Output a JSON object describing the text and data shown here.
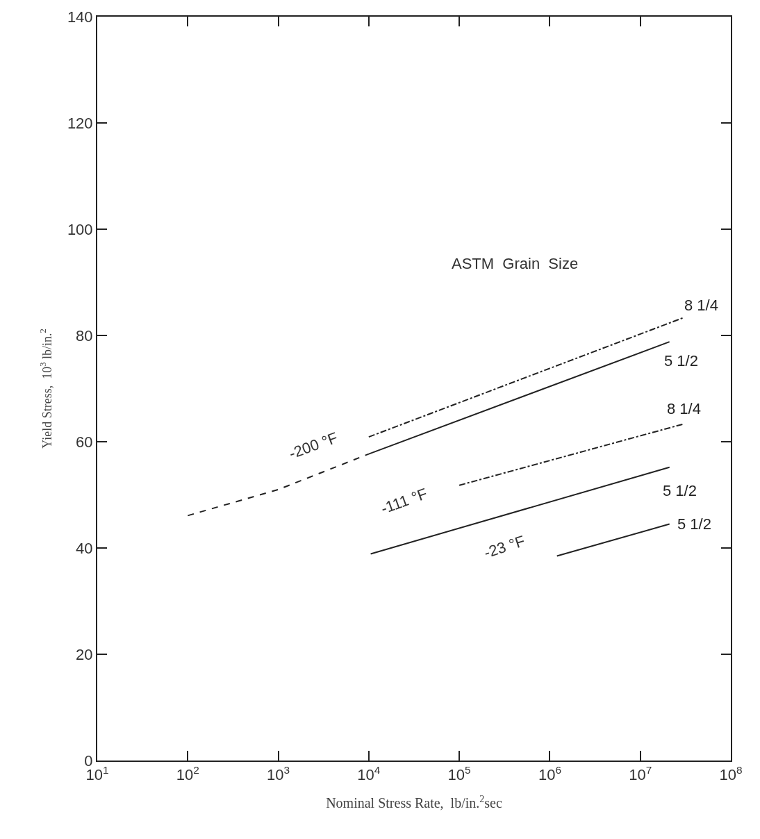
{
  "chart_data": {
    "type": "line",
    "xlabel": "Nominal Stress Rate,  lb/in.$^{2}$sec",
    "ylabel": "Yield Stress,  10$^{3}$ lb/in.$^{2}$",
    "log": "x",
    "xlim": [
      10,
      100000000
    ],
    "ylim": [
      0,
      140
    ],
    "xticks": [
      {
        "value": 10,
        "label": "10$^{1}$"
      },
      {
        "value": 100,
        "label": "10$^{2}$"
      },
      {
        "value": 1000,
        "label": "10$^{3}$"
      },
      {
        "value": 10000,
        "label": "10$^{4}$"
      },
      {
        "value": 100000,
        "label": "10$^{5}$"
      },
      {
        "value": 1000000,
        "label": "10$^{6}$"
      },
      {
        "value": 10000000,
        "label": "10$^{7}$"
      },
      {
        "value": 100000000,
        "label": "10$^{8}$"
      }
    ],
    "yticks": [
      0,
      20,
      40,
      60,
      80,
      100,
      120,
      140
    ],
    "legend": false,
    "marker": "none",
    "series": [
      {
        "name": "8 1/4",
        "color": "#222222",
        "line_style": "dashdot",
        "x": [
          10000,
          29500000
        ],
        "values": [
          60.9,
          83.3
        ]
      },
      {
        "color": "#222222",
        "line_style": "dashed",
        "x": [
          100,
          1000,
          10000
        ],
        "values": [
          46.1,
          51,
          57.7
        ]
      },
      {
        "name": "5 1/2",
        "color": "#222222",
        "line_style": "solid",
        "x": [
          10000,
          21000000
        ],
        "values": [
          57.7,
          78.8
        ]
      },
      {
        "name": "8 1/4",
        "color": "#222222",
        "line_style": "dashdot",
        "x": [
          100000,
          29500000
        ],
        "values": [
          51.8,
          63.3
        ]
      },
      {
        "name": "5 1/2",
        "color": "#222222",
        "line_style": "solid",
        "x": [
          10500,
          21000000
        ],
        "values": [
          38.9,
          55.2
        ]
      },
      {
        "name": "5 1/2",
        "color": "#222222",
        "line_style": "solid",
        "x": [
          1200000,
          21000000
        ],
        "values": [
          38.5,
          44.5
        ]
      }
    ],
    "annotations": [
      "ASTM  Grain  Size",
      "-200 °F",
      "-111 °F",
      "-23 °F"
    ]
  }
}
